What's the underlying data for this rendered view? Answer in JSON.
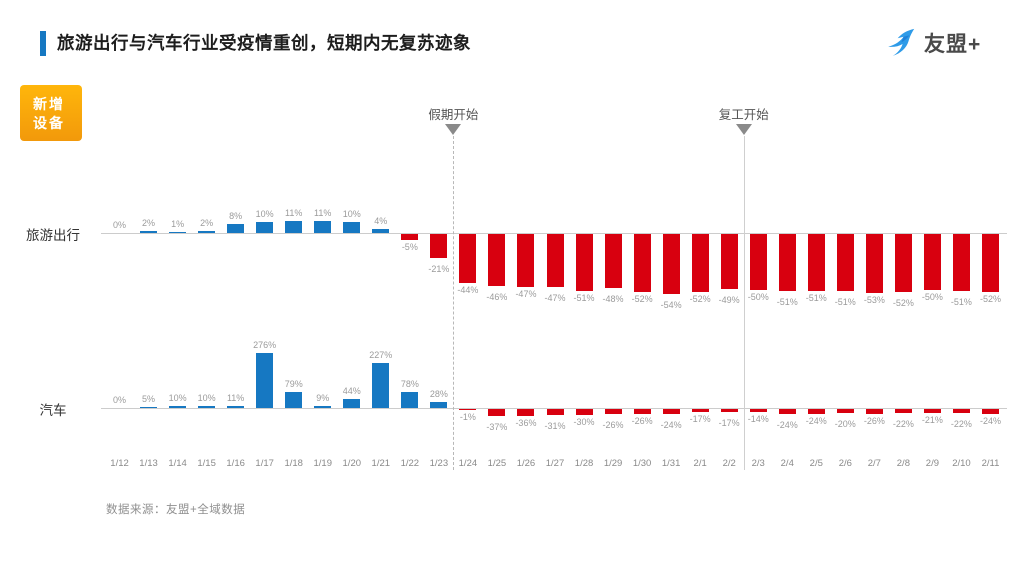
{
  "header": {
    "title": "旅游出行与汽车行业受疫情重创，短期内无复苏迹象",
    "logo_text": "友盟+"
  },
  "badge": {
    "line1": "新增",
    "line2": "设备"
  },
  "footer": {
    "source": "数据来源：友盟+全域数据"
  },
  "colors": {
    "accent_blue": "#1678C2",
    "bar_positive": "#1678C2",
    "bar_negative": "#D8000F",
    "badge_yellow": "#F5A80A",
    "logo_blue": "#2E9BE8"
  },
  "chart_data": {
    "type": "bar",
    "title": "旅游出行与汽车行业受疫情重创，短期内无复苏迹象",
    "unit": "%",
    "value_labels": "on",
    "legend_position": "none",
    "grid": "off",
    "categories": [
      "1/12",
      "1/13",
      "1/14",
      "1/15",
      "1/16",
      "1/17",
      "1/18",
      "1/19",
      "1/20",
      "1/21",
      "1/22",
      "1/23",
      "1/24",
      "1/25",
      "1/26",
      "1/27",
      "1/28",
      "1/29",
      "1/30",
      "1/31",
      "2/1",
      "2/2",
      "2/3",
      "2/4",
      "2/5",
      "2/6",
      "2/7",
      "2/8",
      "2/9",
      "2/10",
      "2/11"
    ],
    "series": [
      {
        "name": "旅游出行",
        "values": [
          0,
          2,
          1,
          2,
          8,
          10,
          11,
          11,
          10,
          4,
          -5,
          -21,
          -44,
          -46,
          -47,
          -47,
          -51,
          -48,
          -52,
          -54,
          -52,
          -49,
          -50,
          -51,
          -51,
          -51,
          -53,
          -52,
          -50,
          -51,
          -52
        ]
      },
      {
        "name": "汽车",
        "values": [
          0,
          5,
          10,
          10,
          11,
          276,
          79,
          9,
          44,
          227,
          78,
          28,
          -1,
          -37,
          -36,
          -31,
          -30,
          -26,
          -26,
          -24,
          -17,
          -17,
          -14,
          -24,
          -24,
          -20,
          -26,
          -22,
          -21,
          -22,
          -24
        ]
      }
    ],
    "markers": [
      {
        "label": "假期开始",
        "after_category": "1/23",
        "line_style": "dashed"
      },
      {
        "label": "复工开始",
        "after_category": "2/2",
        "line_style": "solid"
      }
    ]
  }
}
